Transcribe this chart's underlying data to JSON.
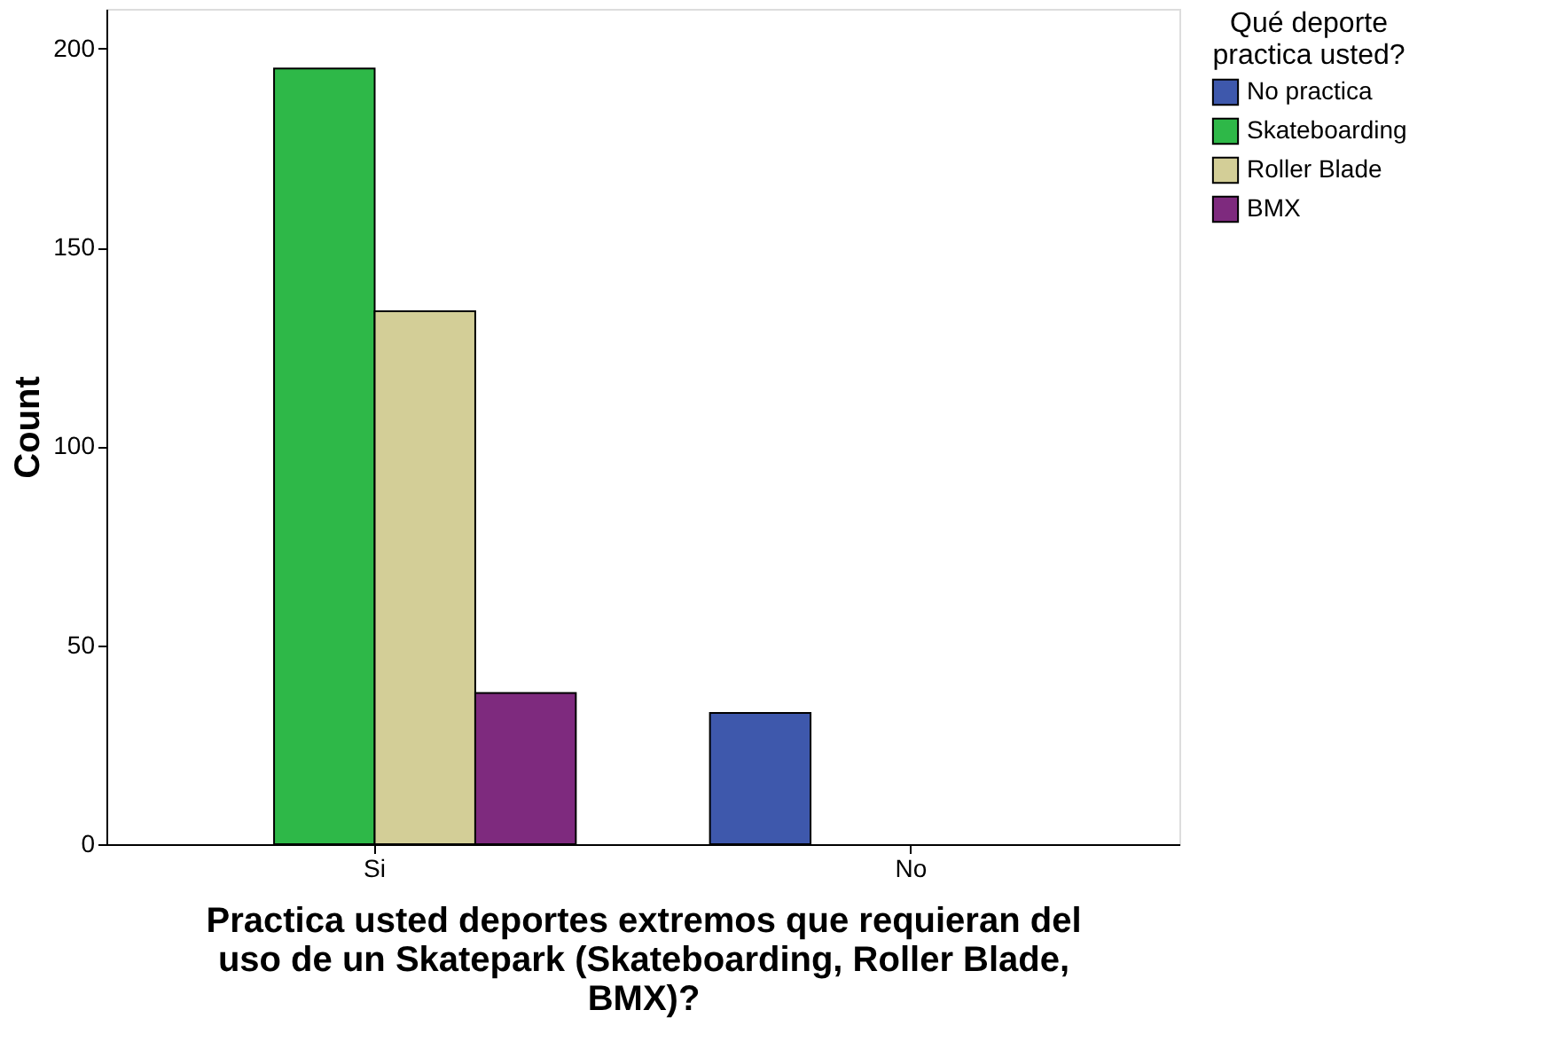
{
  "chart_data": {
    "type": "bar",
    "xlabel": "Practica usted deportes extremos que requieran del uso de un Skatepark (Skateboarding, Roller Blade, BMX)?",
    "ylabel": "Count",
    "legend_title": "Qué deporte practica usted?",
    "categories": [
      "Si",
      "No"
    ],
    "series": [
      {
        "name": "No practica",
        "color": "#3e58ac",
        "values": [
          null,
          33
        ]
      },
      {
        "name": "Skateboarding",
        "color": "#2eb848",
        "values": [
          195,
          null
        ]
      },
      {
        "name": "Roller Blade",
        "color": "#d3ce97",
        "values": [
          134,
          null
        ]
      },
      {
        "name": "BMX",
        "color": "#7e2a7e",
        "values": [
          38,
          null
        ]
      }
    ],
    "ylim": [
      0,
      210
    ],
    "yticks": [
      0,
      50,
      100,
      150,
      200
    ],
    "grid": false,
    "legend": "top right"
  }
}
